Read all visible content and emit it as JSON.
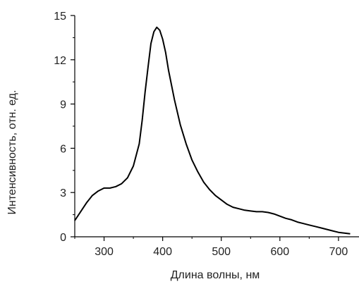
{
  "chart_data": {
    "type": "line",
    "title": "",
    "xlabel": "Длина волны, нм",
    "ylabel": "Интенсивность, отн. ед.",
    "xlim": [
      250,
      735
    ],
    "ylim": [
      0,
      15
    ],
    "xticks": [
      300,
      400,
      500,
      600,
      700
    ],
    "yticks": [
      0,
      3,
      6,
      9,
      12,
      15
    ],
    "grid": false,
    "legend": "none",
    "line_color": "#000000",
    "series": [
      {
        "x": [
          250,
          260,
          270,
          280,
          290,
          300,
          310,
          320,
          330,
          340,
          350,
          360,
          365,
          370,
          375,
          380,
          385,
          390,
          395,
          400,
          405,
          410,
          420,
          430,
          440,
          450,
          460,
          470,
          480,
          490,
          500,
          510,
          520,
          530,
          540,
          550,
          560,
          570,
          580,
          590,
          600,
          610,
          620,
          630,
          640,
          650,
          660,
          670,
          680,
          690,
          700,
          710,
          720
        ],
        "y": [
          1.1,
          1.7,
          2.3,
          2.8,
          3.1,
          3.3,
          3.3,
          3.4,
          3.6,
          4.0,
          4.8,
          6.3,
          7.9,
          9.8,
          11.5,
          13.1,
          13.9,
          14.2,
          14.0,
          13.4,
          12.5,
          11.3,
          9.3,
          7.6,
          6.3,
          5.2,
          4.4,
          3.7,
          3.2,
          2.8,
          2.5,
          2.2,
          2.0,
          1.9,
          1.8,
          1.75,
          1.7,
          1.7,
          1.65,
          1.55,
          1.4,
          1.25,
          1.15,
          1.0,
          0.9,
          0.8,
          0.7,
          0.6,
          0.5,
          0.4,
          0.3,
          0.25,
          0.2
        ]
      }
    ]
  }
}
